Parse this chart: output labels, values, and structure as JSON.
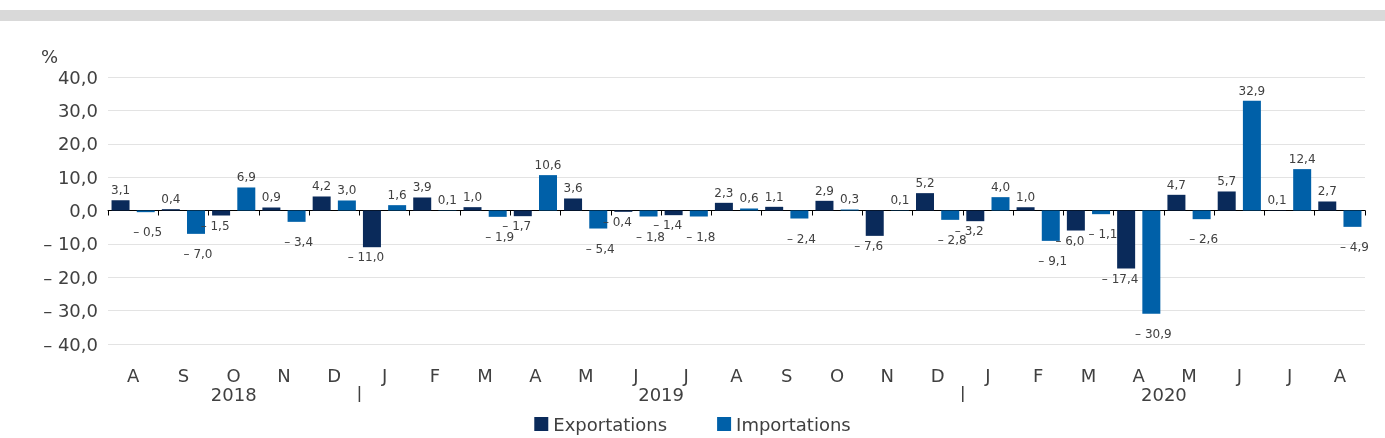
{
  "chart_data": {
    "type": "bar",
    "ylabel": "%",
    "categories": [
      "A",
      "S",
      "O",
      "N",
      "D",
      "J",
      "F",
      "M",
      "A",
      "M",
      "J",
      "J",
      "A",
      "S",
      "O",
      "N",
      "D",
      "J",
      "F",
      "M",
      "A",
      "M",
      "J",
      "J",
      "A"
    ],
    "series": [
      {
        "name": "Exportations",
        "color": "#0a2a5a",
        "values": [
          3.1,
          0.4,
          -1.5,
          0.9,
          4.2,
          -11.0,
          3.9,
          1.0,
          -1.7,
          3.6,
          -0.4,
          -1.4,
          2.3,
          1.1,
          2.9,
          -7.6,
          5.2,
          -3.2,
          1.0,
          -6.0,
          -17.4,
          4.7,
          5.7,
          0.1,
          2.7
        ],
        "value_labels": [
          "3,1",
          "0,4",
          "– 1,5",
          "0,9",
          "4,2",
          "– 11,0",
          "3,9",
          "1,0",
          "– 1,7",
          "3,6",
          "– 0,4",
          "– 1,4",
          "2,3",
          "1,1",
          "2,9",
          "– 7,6",
          "5,2",
          "– 3,2",
          "1,0",
          "– 6,0",
          "– 17,4",
          "4,7",
          "5,7",
          "0,1",
          "2,7"
        ]
      },
      {
        "name": "Importations",
        "color": "#0060a8",
        "values": [
          -0.5,
          -7.0,
          6.9,
          -3.4,
          3.0,
          1.6,
          0.1,
          -1.9,
          10.6,
          -5.4,
          -1.8,
          -1.8,
          0.6,
          -2.4,
          0.3,
          0.1,
          -2.8,
          4.0,
          -9.1,
          -1.1,
          -30.9,
          -2.6,
          32.9,
          12.4,
          -4.9
        ],
        "value_labels": [
          "– 0,5",
          "– 7,0",
          "6,9",
          "– 3,4",
          "3,0",
          "1,6",
          "0,1",
          "– 1,9",
          "10,6",
          "– 5,4",
          "– 1,8",
          "– 1,8",
          "0,6",
          "– 2,4",
          "0,3",
          "0,1",
          "– 2,8",
          "4,0",
          "– 9,1",
          "– 1,1",
          "– 30,9",
          "– 2,6",
          "32,9",
          "12,4",
          "– 4,9"
        ]
      }
    ],
    "ylim": [
      -40,
      40
    ],
    "yticks": [
      {
        "value": -40,
        "label": "– 40,0"
      },
      {
        "value": -30,
        "label": "– 30,0"
      },
      {
        "value": -20,
        "label": "– 20,0"
      },
      {
        "value": -10,
        "label": "– 10,0"
      },
      {
        "value": 0,
        "label": "0,0"
      },
      {
        "value": 10,
        "label": "10,0"
      },
      {
        "value": 20,
        "label": "20,0"
      },
      {
        "value": 30,
        "label": "30,0"
      },
      {
        "value": 40,
        "label": "40,0"
      }
    ],
    "annotations": [
      "2018",
      "2019",
      "2020"
    ],
    "grid": "y",
    "legend": "bottom"
  }
}
